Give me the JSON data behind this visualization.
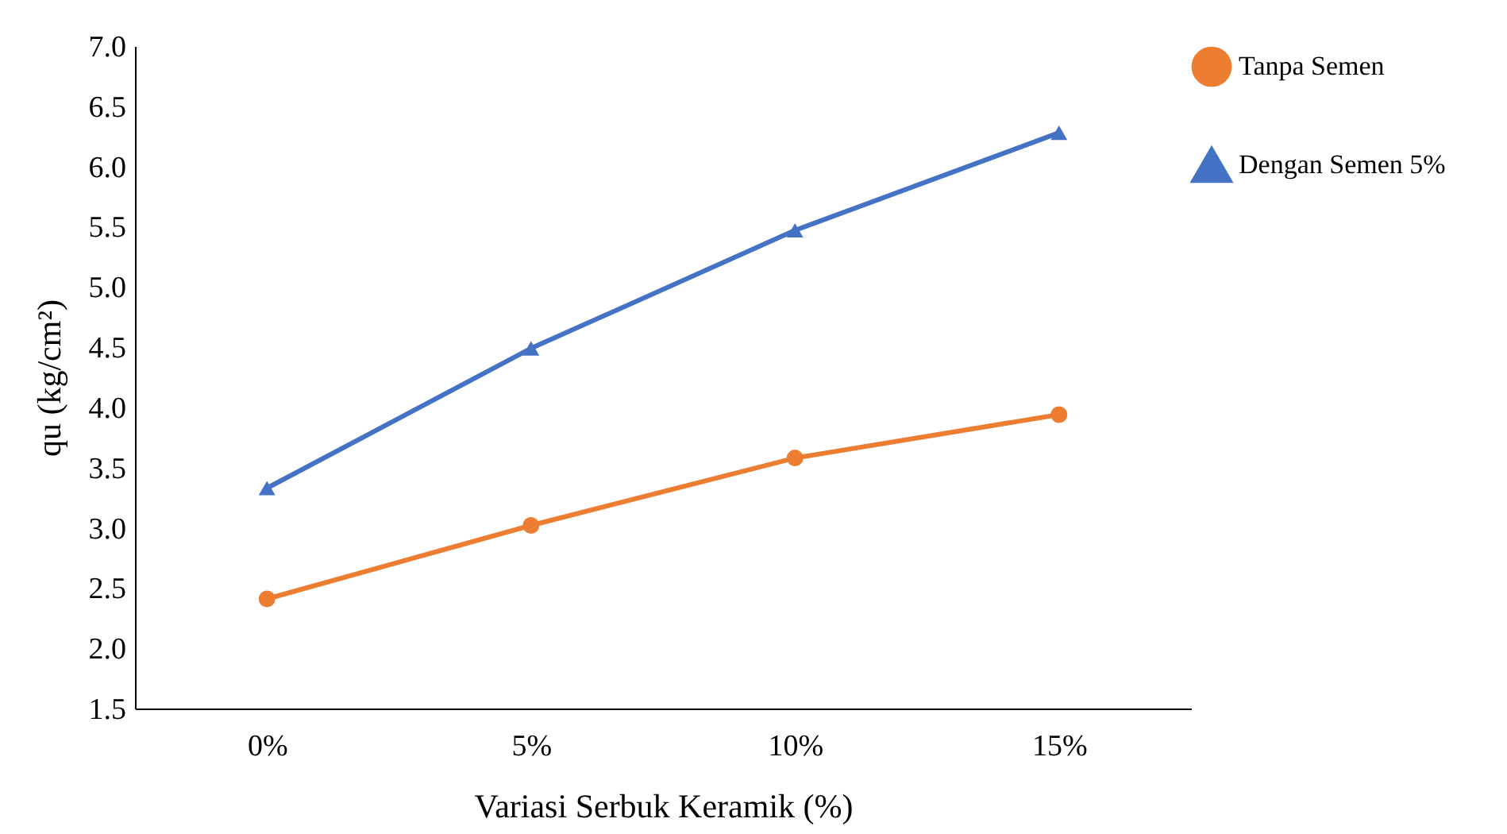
{
  "chart_data": {
    "type": "line",
    "xlabel": "Variasi Serbuk Keramik (%)",
    "ylabel": "qu (kg/cm²)",
    "categories": [
      "0%",
      "5%",
      "10%",
      "15%"
    ],
    "series": [
      {
        "name": "Tanpa Semen",
        "color": "#ed7d31",
        "marker": "circle",
        "values": [
          2.41,
          3.02,
          3.58,
          3.94
        ]
      },
      {
        "name": "Dengan Semen 5%",
        "color": "#4472c4",
        "marker": "triangle",
        "values": [
          3.33,
          4.49,
          5.47,
          6.28
        ]
      }
    ],
    "ylim": [
      1.5,
      7.0
    ],
    "yticks": [
      {
        "value": 1.5,
        "label": "1.5"
      },
      {
        "value": 2,
        "label": "2.0"
      },
      {
        "value": 2.5,
        "label": "2.5"
      },
      {
        "value": 3,
        "label": "3.0"
      },
      {
        "value": 3.5,
        "label": "3.5"
      },
      {
        "value": 4,
        "label": "4.0"
      },
      {
        "value": 4.5,
        "label": "4.5"
      },
      {
        "value": 5,
        "label": "5.0"
      },
      {
        "value": 5.5,
        "label": "5.5"
      },
      {
        "value": 6,
        "label": "6.0"
      },
      {
        "value": 6.5,
        "label": "6.5"
      },
      {
        "value": 7,
        "label": "7.0"
      }
    ],
    "grid": false,
    "legend": "right",
    "line_style": "solid"
  }
}
